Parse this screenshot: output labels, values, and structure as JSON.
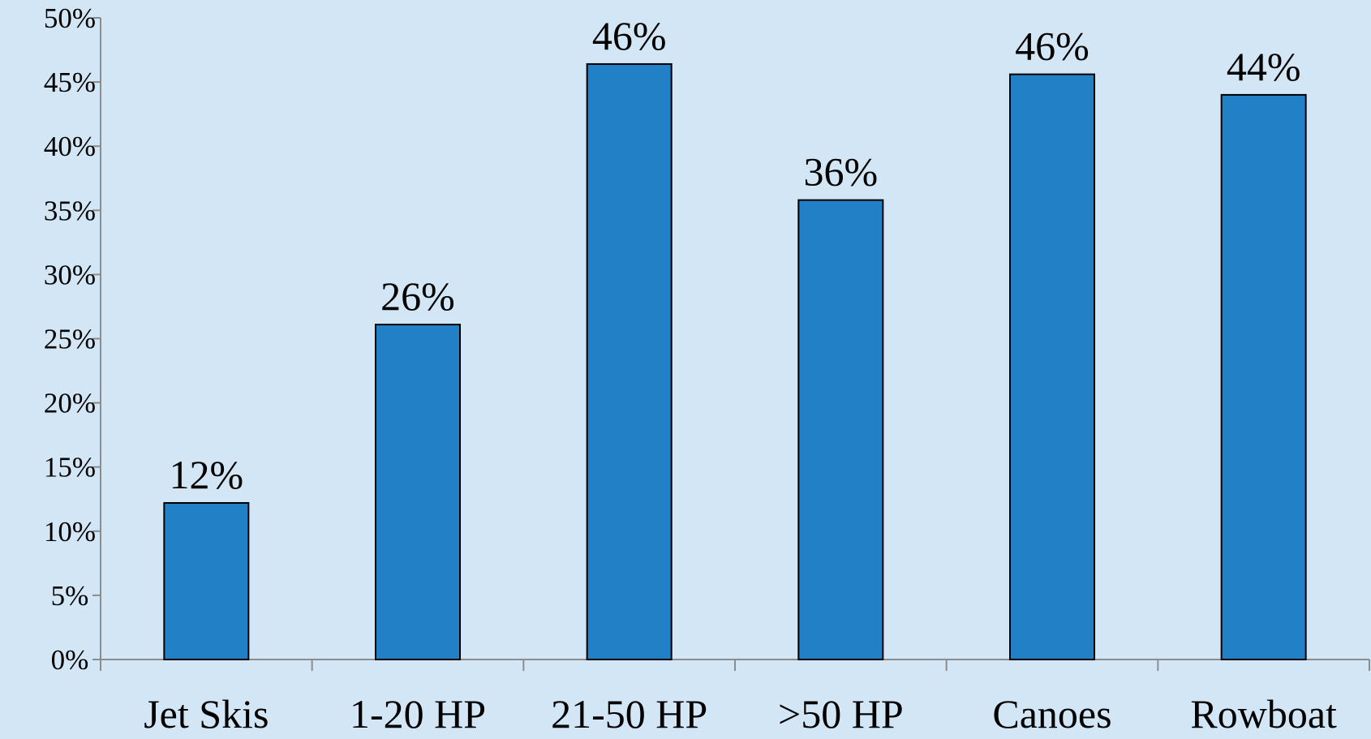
{
  "chart_data": {
    "type": "bar",
    "categories": [
      "Jet Skis",
      "1-20 HP",
      "21-50 HP",
      ">50 HP",
      "Canoes",
      "Rowboat"
    ],
    "values": [
      12.2,
      26.1,
      46.4,
      35.8,
      45.6,
      44.0
    ],
    "data_labels": [
      "12%",
      "26%",
      "46%",
      "36%",
      "46%",
      "44%"
    ],
    "y_tick_labels": [
      "0%",
      "5%",
      "10%",
      "15%",
      "20%",
      "25%",
      "30%",
      "35%",
      "40%",
      "45%",
      "50%"
    ],
    "y_ticks": [
      0,
      5,
      10,
      15,
      20,
      25,
      30,
      35,
      40,
      45,
      50
    ],
    "ylim": [
      0,
      50
    ],
    "title": "",
    "xlabel": "",
    "ylabel": "",
    "grid": false,
    "legend": "none",
    "colors": {
      "background": "#d2e6f6",
      "bar_fill": "#2180c6",
      "bar_stroke": "#000000",
      "axis": "#8c8c8c"
    }
  }
}
